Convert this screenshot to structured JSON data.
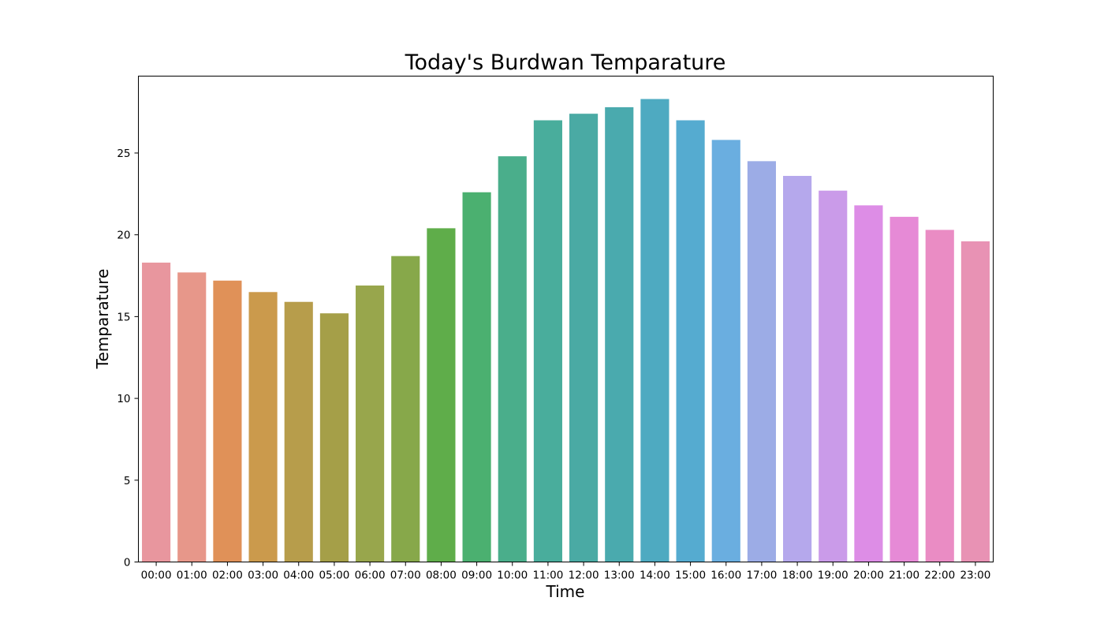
{
  "chart_data": {
    "type": "bar",
    "title": "Today's Burdwan Temparature",
    "xlabel": "Time",
    "ylabel": "Temparature",
    "categories": [
      "00:00",
      "01:00",
      "02:00",
      "03:00",
      "04:00",
      "05:00",
      "06:00",
      "07:00",
      "08:00",
      "09:00",
      "10:00",
      "11:00",
      "12:00",
      "13:00",
      "14:00",
      "15:00",
      "16:00",
      "17:00",
      "18:00",
      "19:00",
      "20:00",
      "21:00",
      "22:00",
      "23:00"
    ],
    "values": [
      18.3,
      17.7,
      17.2,
      16.5,
      15.9,
      15.2,
      16.9,
      18.7,
      20.4,
      22.6,
      24.8,
      27.0,
      27.4,
      27.8,
      28.3,
      27.0,
      25.8,
      24.5,
      23.6,
      22.7,
      21.8,
      21.1,
      20.3,
      19.6
    ],
    "colors": [
      "#e8969e",
      "#e7978a",
      "#e09158",
      "#cb9a4c",
      "#b79d4b",
      "#a59f48",
      "#98a64c",
      "#87a84a",
      "#5fad4a",
      "#4bb070",
      "#4aae8b",
      "#49ad9c",
      "#4aaaa4",
      "#4aaaae",
      "#4eaac1",
      "#55abd0",
      "#6aaee0",
      "#9cace6",
      "#b5a8ec",
      "#ca9be9",
      "#dd8de6",
      "#e68ad6",
      "#ea8cc4",
      "#e892b4"
    ],
    "yticks": [
      0,
      5,
      10,
      15,
      20,
      25
    ],
    "ylim": [
      0,
      29.7
    ],
    "grid": false,
    "legend": false
  }
}
